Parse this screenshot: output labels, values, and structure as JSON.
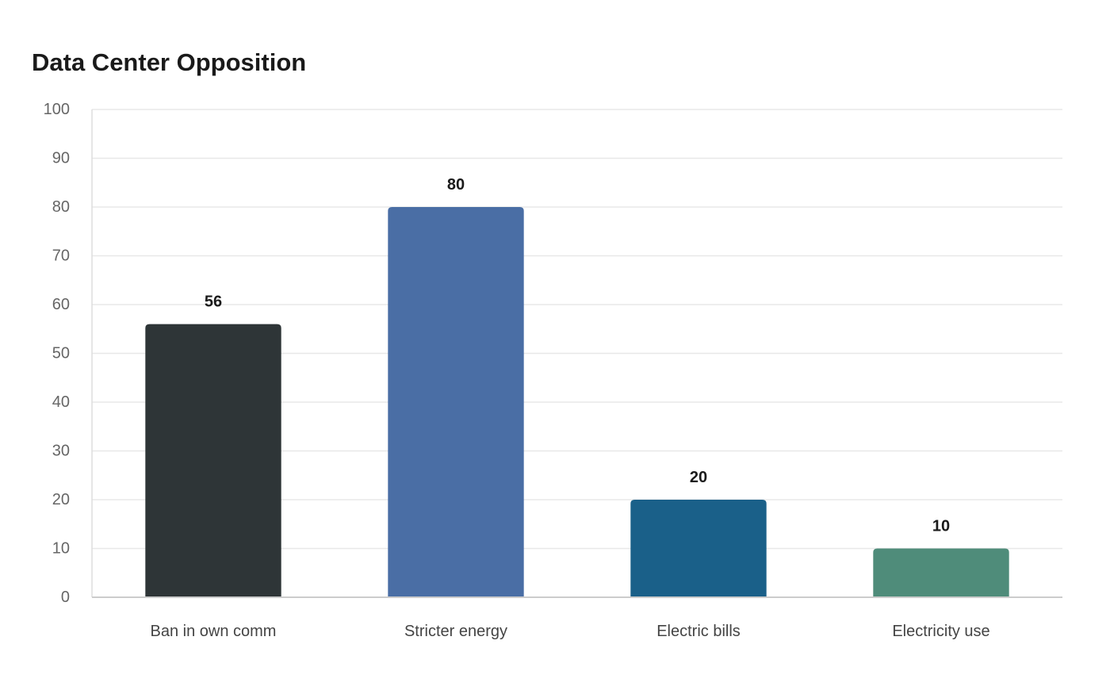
{
  "chart_data": {
    "type": "bar",
    "title": "Data Center Opposition",
    "xlabel": "",
    "ylabel": "",
    "categories": [
      "Ban in own comm",
      "Stricter energy",
      "Electric bills",
      "Electricity use"
    ],
    "values": [
      56,
      80,
      20,
      10
    ],
    "bar_colors": [
      "#2e3537",
      "#4a6ea5",
      "#1a6089",
      "#4f8c7a"
    ],
    "ylim": [
      0,
      100
    ],
    "yticks": [
      0,
      10,
      20,
      30,
      40,
      50,
      60,
      70,
      80,
      90,
      100
    ],
    "grid": true,
    "legend": "none",
    "data_labels": true
  }
}
